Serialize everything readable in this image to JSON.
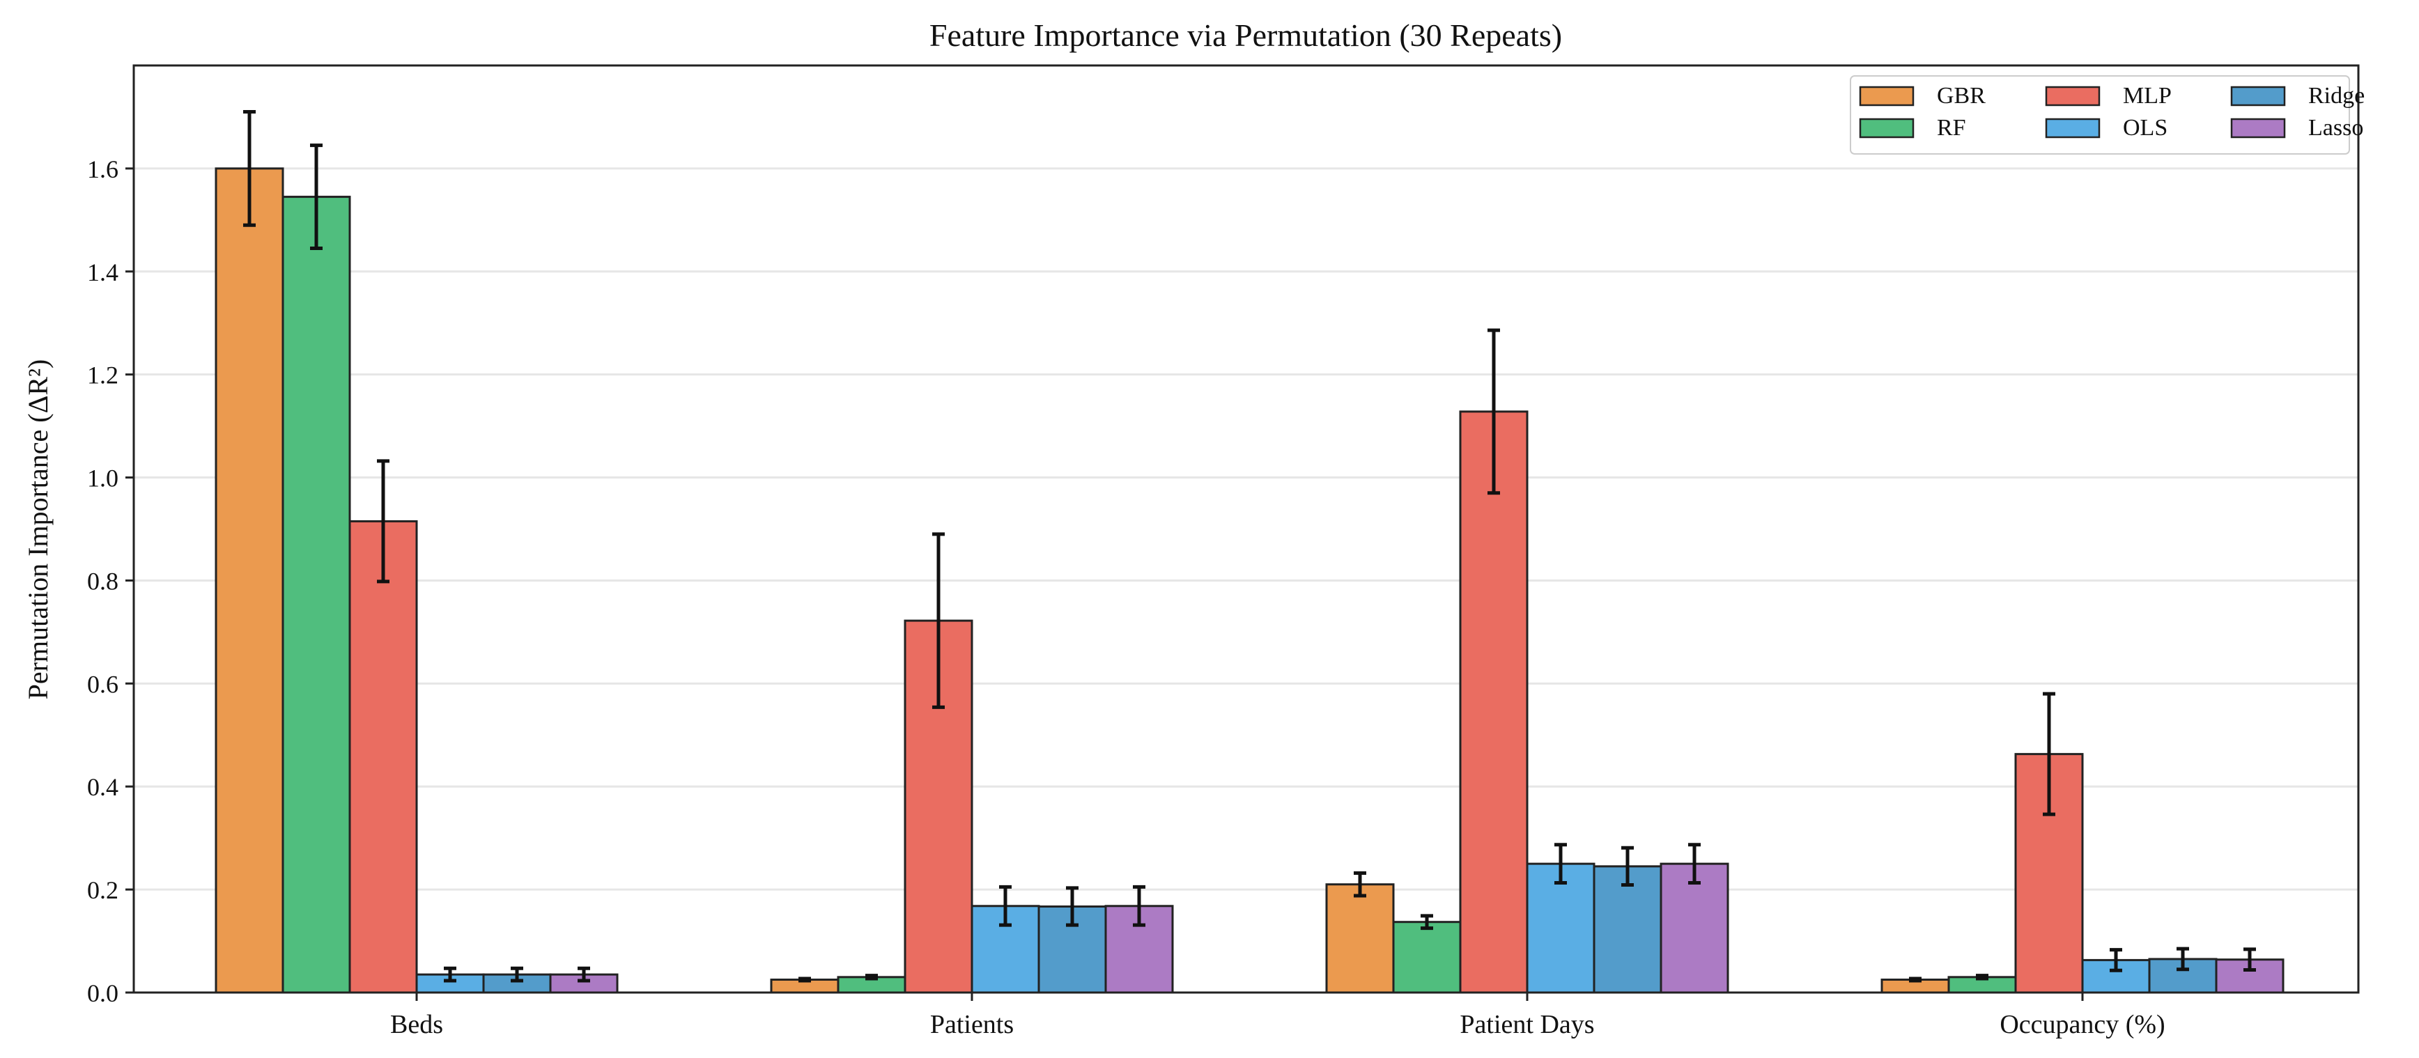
{
  "chart_data": {
    "type": "bar",
    "title": "Feature Importance via Permutation (30 Repeats)",
    "xlabel": "",
    "ylabel": "Permutation Importance (ΔR²)",
    "ylim": [
      0,
      1.8
    ],
    "yticks": [
      0.0,
      0.2,
      0.4,
      0.6,
      0.8,
      1.0,
      1.2,
      1.4,
      1.6
    ],
    "ytick_labels": [
      "0.0",
      "0.2",
      "0.4",
      "0.6",
      "0.8",
      "1.0",
      "1.2",
      "1.4",
      "1.6"
    ],
    "grid": "y",
    "legend_position": "top-right",
    "categories": [
      "Beds",
      "Patients",
      "Patient Days",
      "Occupancy (%)"
    ],
    "series": [
      {
        "name": "GBR",
        "color": "#eb9a4f",
        "values": [
          1.6,
          0.025,
          0.21,
          0.025
        ],
        "errors": [
          0.11,
          0.002,
          0.022,
          0.002
        ]
      },
      {
        "name": "RF",
        "color": "#50be7e",
        "values": [
          1.545,
          0.03,
          0.137,
          0.03
        ],
        "errors": [
          0.1,
          0.003,
          0.012,
          0.003
        ]
      },
      {
        "name": "MLP",
        "color": "#ea6d61",
        "values": [
          0.915,
          0.722,
          1.128,
          0.463
        ],
        "errors": [
          0.117,
          0.168,
          0.158,
          0.117
        ]
      },
      {
        "name": "OLS",
        "color": "#5aaee4",
        "values": [
          0.035,
          0.168,
          0.25,
          0.063
        ],
        "errors": [
          0.012,
          0.037,
          0.037,
          0.02
        ]
      },
      {
        "name": "Ridge",
        "color": "#539ccb",
        "values": [
          0.035,
          0.167,
          0.245,
          0.065
        ],
        "errors": [
          0.012,
          0.036,
          0.036,
          0.02
        ]
      },
      {
        "name": "Lasso",
        "color": "#ac7bc4",
        "values": [
          0.035,
          0.168,
          0.25,
          0.064
        ],
        "errors": [
          0.012,
          0.037,
          0.037,
          0.02
        ]
      }
    ]
  }
}
